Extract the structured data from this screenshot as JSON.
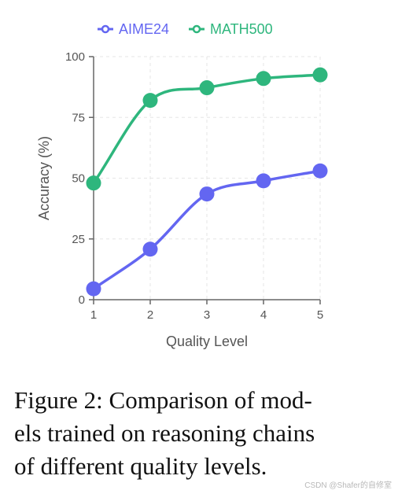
{
  "chart_data": {
    "type": "line",
    "x": [
      1,
      2,
      3,
      4,
      5
    ],
    "xlabel": "Quality Level",
    "ylabel": "Accuracy (%)",
    "ylim": [
      0,
      100
    ],
    "yticks": [
      0,
      25,
      50,
      75,
      100
    ],
    "grid": true,
    "legend_position": "top-center",
    "series": [
      {
        "name": "AIME24",
        "color": "#6366f1",
        "values": [
          4.5,
          20.8,
          43.5,
          48.9,
          53
        ]
      },
      {
        "name": "MATH500",
        "color": "#2eb67d",
        "values": [
          48,
          82,
          87.2,
          91,
          92.5
        ]
      }
    ]
  },
  "caption": "Figure 2: Comparison of models trained on reasoning chains of different quality levels.",
  "caption_lines": [
    "Figure 2: Comparison of mod-",
    "els trained on reasoning chains",
    "of different quality levels."
  ],
  "watermark": "CSDN @Shafer的自修室"
}
